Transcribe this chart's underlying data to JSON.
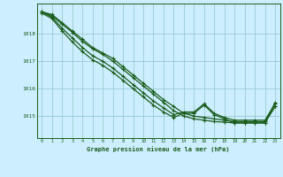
{
  "title": "Graphe pression niveau de la mer (hPa)",
  "bg_color": "#cceeff",
  "grid_color": "#99cccc",
  "line_color": "#1a5c1a",
  "xlim": [
    -0.5,
    23.5
  ],
  "ylim": [
    1014.2,
    1019.1
  ],
  "yticks": [
    1015,
    1016,
    1017,
    1018
  ],
  "xticks": [
    0,
    1,
    2,
    3,
    4,
    5,
    6,
    7,
    8,
    9,
    10,
    11,
    12,
    13,
    14,
    15,
    16,
    17,
    18,
    19,
    20,
    21,
    22,
    23
  ],
  "hours": [
    0,
    1,
    2,
    3,
    4,
    5,
    6,
    7,
    8,
    9,
    10,
    11,
    12,
    13,
    14,
    15,
    16,
    17,
    18,
    19,
    20,
    21,
    22,
    23
  ],
  "series": [
    [
      1018.8,
      1018.7,
      1018.4,
      1018.1,
      1017.8,
      1017.5,
      1017.3,
      1017.1,
      1016.8,
      1016.5,
      1016.2,
      1015.9,
      1015.6,
      1015.35,
      1015.1,
      1015.0,
      1014.95,
      1014.9,
      1014.85,
      1014.8,
      1014.8,
      1014.8,
      1014.8,
      1015.35
    ],
    [
      1018.8,
      1018.65,
      1018.35,
      1018.05,
      1017.72,
      1017.45,
      1017.25,
      1017.0,
      1016.7,
      1016.4,
      1016.1,
      1015.8,
      1015.5,
      1015.2,
      1015.0,
      1014.9,
      1014.85,
      1014.8,
      1014.78,
      1014.75,
      1014.75,
      1014.75,
      1014.75,
      1015.35
    ],
    [
      1018.8,
      1018.6,
      1018.2,
      1017.85,
      1017.5,
      1017.2,
      1017.0,
      1016.75,
      1016.45,
      1016.15,
      1015.85,
      1015.55,
      1015.3,
      1015.05,
      1015.15,
      1015.15,
      1015.45,
      1015.1,
      1014.95,
      1014.85,
      1014.85,
      1014.85,
      1014.85,
      1015.45
    ],
    [
      1018.75,
      1018.55,
      1018.1,
      1017.7,
      1017.35,
      1017.05,
      1016.85,
      1016.6,
      1016.3,
      1016.0,
      1015.7,
      1015.4,
      1015.15,
      1014.95,
      1015.1,
      1015.1,
      1015.4,
      1015.05,
      1014.9,
      1014.75,
      1014.75,
      1014.75,
      1014.75,
      1015.5
    ]
  ]
}
